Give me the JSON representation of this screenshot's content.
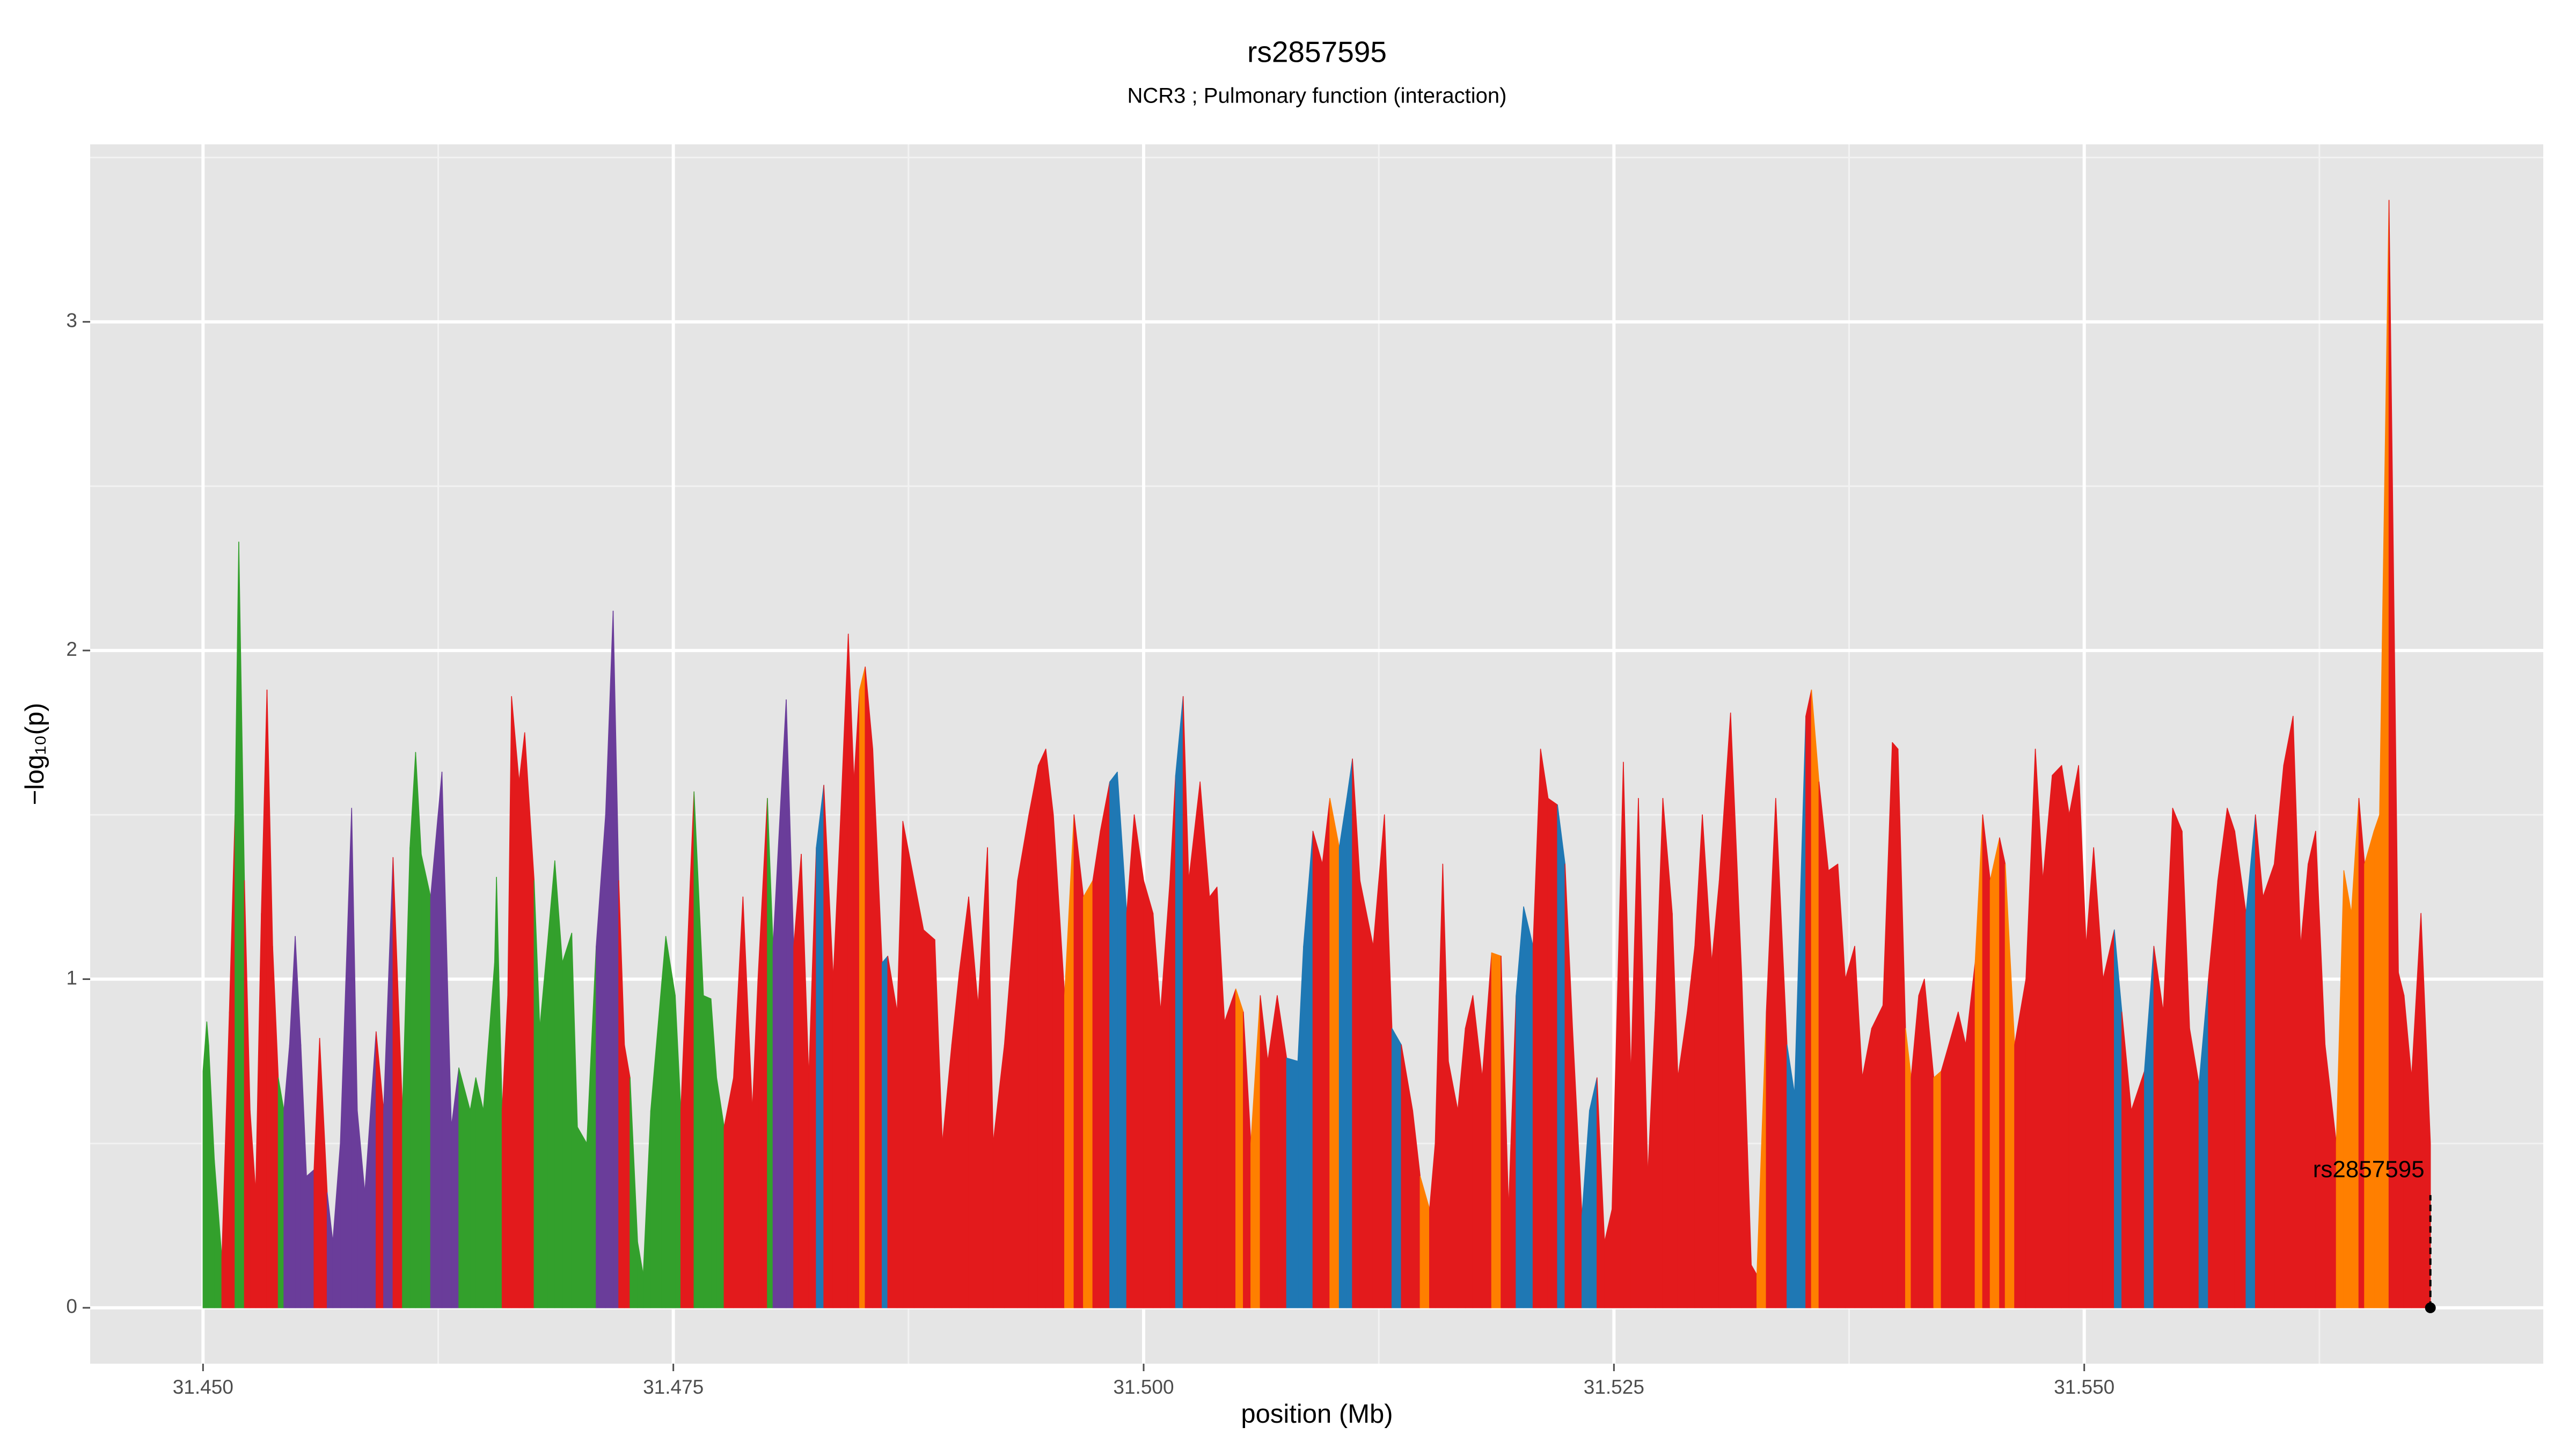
{
  "chart_data": {
    "type": "area",
    "title": "rs2857595",
    "subtitle": "NCR3 ; Pulmonary function (interaction)",
    "x_label": "position (Mb)",
    "y_label": "−log₁₀(p)",
    "xlim": [
      31.444,
      31.5744
    ],
    "ylim": [
      -0.17,
      3.54
    ],
    "xticks": [
      {
        "value": 31.45,
        "label": "31.450"
      },
      {
        "value": 31.475,
        "label": "31.475"
      },
      {
        "value": 31.5,
        "label": "31.500"
      },
      {
        "value": 31.525,
        "label": "31.525"
      },
      {
        "value": 31.55,
        "label": "31.550"
      }
    ],
    "yticks": [
      0,
      1,
      2,
      3
    ],
    "x_minor_ticks": [
      31.4625,
      31.4875,
      31.5125,
      31.5375,
      31.5625
    ],
    "y_minor_ticks": [
      0.5,
      1.5,
      2.5,
      3.5
    ],
    "grid": true,
    "x": [
      31.45,
      31.4502,
      31.4503,
      31.4506,
      31.451,
      31.4514,
      31.4517,
      31.4519,
      31.4522,
      31.4525,
      31.4528,
      31.4531,
      31.4534,
      31.4537,
      31.454,
      31.4543,
      31.4546,
      31.4549,
      31.4552,
      31.4555,
      31.4559,
      31.4562,
      31.4566,
      31.4569,
      31.4573,
      31.4579,
      31.4582,
      31.4586,
      31.4592,
      31.4596,
      31.4601,
      31.4606,
      31.461,
      31.4613,
      31.4616,
      31.4621,
      31.4627,
      31.4632,
      31.4636,
      31.4642,
      31.4645,
      31.4649,
      31.4655,
      31.4656,
      31.4659,
      31.4662,
      31.4664,
      31.4668,
      31.4671,
      31.4676,
      31.4679,
      31.4683,
      31.4687,
      31.4691,
      31.4696,
      31.4699,
      31.4704,
      31.4709,
      31.4714,
      31.4718,
      31.4721,
      31.4724,
      31.4727,
      31.4731,
      31.4734,
      31.4738,
      31.4744,
      31.4746,
      31.4751,
      31.4754,
      31.4759,
      31.4761,
      31.4766,
      31.477,
      31.4773,
      31.4777,
      31.4782,
      31.4787,
      31.4792,
      31.4795,
      31.48,
      31.4803,
      31.481,
      31.4814,
      31.4818,
      31.4822,
      31.4826,
      31.483,
      31.4835,
      31.4839,
      31.4843,
      31.4846,
      31.4849,
      31.4852,
      31.4856,
      31.4861,
      31.4864,
      31.4869,
      31.4872,
      31.4878,
      31.4883,
      31.4889,
      31.4893,
      31.4898,
      31.4902,
      31.4907,
      31.4912,
      31.4917,
      31.492,
      31.4926,
      31.4933,
      31.4939,
      31.4944,
      31.4948,
      31.4952,
      31.4958,
      31.4963,
      31.4968,
      31.4973,
      31.4977,
      31.4982,
      31.4986,
      31.4991,
      31.4995,
      31.5,
      31.5005,
      31.5009,
      31.5014,
      31.5017,
      31.5021,
      31.5024,
      31.503,
      31.5035,
      31.5039,
      31.5043,
      31.5049,
      31.5053,
      31.5057,
      31.5062,
      31.5066,
      31.5071,
      31.5076,
      31.5082,
      31.5085,
      31.509,
      31.5095,
      31.5099,
      31.5104,
      31.5108,
      31.5111,
      31.5115,
      31.5122,
      31.5128,
      31.5132,
      31.5137,
      31.5143,
      31.5147,
      31.5152,
      31.5155,
      31.5159,
      31.5162,
      31.5167,
      31.5171,
      31.5175,
      31.518,
      31.5185,
      31.519,
      31.5194,
      31.5198,
      31.5202,
      31.5207,
      31.5211,
      31.5215,
      31.522,
      31.5224,
      31.5228,
      31.5233,
      31.5237,
      31.5241,
      31.5245,
      31.5249,
      31.5255,
      31.5259,
      31.5263,
      31.5268,
      31.5272,
      31.5276,
      31.5281,
      31.5284,
      31.5289,
      31.5293,
      31.5297,
      31.5302,
      31.5306,
      31.5312,
      31.5318,
      31.5323,
      31.5326,
      31.5331,
      31.5336,
      31.5342,
      31.5346,
      31.5352,
      31.5355,
      31.5359,
      31.5364,
      31.5369,
      31.5373,
      31.5378,
      31.5382,
      31.5387,
      31.5393,
      31.5398,
      31.5401,
      31.5405,
      31.5408,
      31.5412,
      31.5415,
      31.542,
      31.5424,
      31.5428,
      31.5433,
      31.5437,
      31.5442,
      31.5446,
      31.545,
      31.5455,
      31.5458,
      31.5463,
      31.5469,
      31.5474,
      31.5478,
      31.5483,
      31.5488,
      31.5492,
      31.5497,
      31.5501,
      31.5505,
      31.551,
      31.5516,
      31.552,
      31.5525,
      31.5532,
      31.5537,
      31.5542,
      31.5547,
      31.5552,
      31.5556,
      31.5561,
      31.5566,
      31.5571,
      31.5576,
      31.558,
      31.5586,
      31.5591,
      31.5595,
      31.5601,
      31.5606,
      31.5611,
      31.5615,
      31.5619,
      31.5623,
      31.5628,
      31.5634,
      31.5638,
      31.5642,
      31.5646,
      31.5649,
      31.5654,
      31.5657,
      31.5662,
      31.5667,
      31.567,
      31.5674,
      31.5679,
      31.5684
    ],
    "values": [
      0.72,
      0.87,
      0.8,
      0.45,
      0.15,
      0.9,
      1.5,
      2.33,
      1.3,
      0.6,
      0.35,
      1.2,
      1.88,
      1.1,
      0.7,
      0.6,
      0.8,
      1.13,
      0.8,
      0.4,
      0.42,
      0.82,
      0.35,
      0.2,
      0.5,
      1.52,
      0.6,
      0.35,
      0.84,
      0.6,
      1.37,
      0.6,
      1.4,
      1.69,
      1.38,
      1.25,
      1.63,
      0.55,
      0.73,
      0.6,
      0.7,
      0.6,
      1.05,
      1.31,
      0.6,
      0.95,
      1.86,
      1.6,
      1.75,
      1.3,
      0.85,
      1.1,
      1.36,
      1.05,
      1.14,
      0.55,
      0.5,
      1.1,
      1.5,
      2.12,
      1.3,
      0.8,
      0.7,
      0.2,
      0.1,
      0.6,
      1.0,
      1.13,
      0.95,
      0.6,
      1.3,
      1.57,
      0.95,
      0.94,
      0.7,
      0.55,
      0.7,
      1.25,
      0.6,
      1.0,
      1.55,
      1.1,
      1.85,
      1.1,
      1.38,
      0.7,
      1.4,
      1.59,
      1.0,
      1.5,
      2.05,
      1.6,
      1.88,
      1.95,
      1.7,
      1.05,
      1.07,
      0.9,
      1.48,
      1.3,
      1.15,
      1.12,
      0.5,
      0.8,
      1.02,
      1.25,
      0.92,
      1.4,
      0.5,
      0.8,
      1.3,
      1.5,
      1.65,
      1.7,
      1.5,
      0.95,
      1.5,
      1.25,
      1.3,
      1.45,
      1.6,
      1.63,
      1.2,
      1.5,
      1.3,
      1.2,
      0.9,
      1.3,
      1.62,
      1.86,
      1.3,
      1.6,
      1.25,
      1.28,
      0.87,
      0.97,
      0.9,
      0.5,
      0.95,
      0.75,
      0.95,
      0.76,
      0.75,
      1.1,
      1.45,
      1.35,
      1.55,
      1.4,
      1.55,
      1.67,
      1.3,
      1.1,
      1.5,
      0.85,
      0.8,
      0.6,
      0.4,
      0.3,
      0.5,
      1.35,
      0.75,
      0.6,
      0.85,
      0.95,
      0.7,
      1.08,
      1.07,
      0.3,
      0.95,
      1.22,
      1.1,
      1.7,
      1.55,
      1.53,
      1.35,
      0.85,
      0.28,
      0.6,
      0.7,
      0.2,
      0.3,
      1.66,
      0.7,
      1.55,
      0.4,
      0.9,
      1.55,
      1.2,
      0.7,
      0.9,
      1.1,
      1.5,
      1.05,
      1.3,
      1.81,
      1.0,
      0.13,
      0.1,
      0.9,
      1.55,
      0.8,
      0.65,
      1.8,
      1.88,
      1.6,
      1.33,
      1.35,
      1.0,
      1.1,
      0.7,
      0.85,
      0.92,
      1.72,
      1.7,
      0.85,
      0.7,
      0.95,
      1.0,
      0.7,
      0.72,
      0.8,
      0.9,
      0.8,
      1.05,
      1.5,
      1.3,
      1.43,
      1.35,
      0.8,
      1.0,
      1.7,
      1.3,
      1.62,
      1.65,
      1.5,
      1.65,
      1.1,
      1.4,
      1.0,
      1.15,
      0.9,
      0.6,
      0.72,
      1.1,
      0.9,
      1.52,
      1.45,
      0.85,
      0.68,
      1.0,
      1.3,
      1.52,
      1.45,
      1.2,
      1.5,
      1.25,
      1.35,
      1.65,
      1.8,
      1.1,
      1.35,
      1.45,
      0.8,
      0.5,
      1.33,
      1.2,
      1.55,
      1.35,
      1.45,
      1.5,
      3.37,
      1.02,
      0.95,
      0.7,
      1.2,
      0.5
    ],
    "colors": [
      "#33a02c",
      "#33a02c",
      "#33a02c",
      "#33a02c",
      "#e31a1c",
      "#e31a1c",
      "#33a02c",
      "#33a02c",
      "#e31a1c",
      "#e31a1c",
      "#e31a1c",
      "#e31a1c",
      "#e31a1c",
      "#e31a1c",
      "#33a02c",
      "#6a3d9a",
      "#6a3d9a",
      "#6a3d9a",
      "#6a3d9a",
      "#6a3d9a",
      "#e31a1c",
      "#e31a1c",
      "#6a3d9a",
      "#6a3d9a",
      "#6a3d9a",
      "#6a3d9a",
      "#6a3d9a",
      "#6a3d9a",
      "#e31a1c",
      "#6a3d9a",
      "#e31a1c",
      "#33a02c",
      "#33a02c",
      "#33a02c",
      "#33a02c",
      "#6a3d9a",
      "#6a3d9a",
      "#6a3d9a",
      "#33a02c",
      "#33a02c",
      "#33a02c",
      "#33a02c",
      "#33a02c",
      "#33a02c",
      "#e31a1c",
      "#e31a1c",
      "#e31a1c",
      "#e31a1c",
      "#e31a1c",
      "#33a02c",
      "#33a02c",
      "#33a02c",
      "#33a02c",
      "#33a02c",
      "#33a02c",
      "#33a02c",
      "#33a02c",
      "#6a3d9a",
      "#6a3d9a",
      "#6a3d9a",
      "#e31a1c",
      "#e31a1c",
      "#33a02c",
      "#33a02c",
      "#33a02c",
      "#33a02c",
      "#33a02c",
      "#33a02c",
      "#33a02c",
      "#e31a1c",
      "#e31a1c",
      "#33a02c",
      "#33a02c",
      "#33a02c",
      "#33a02c",
      "#e31a1c",
      "#e31a1c",
      "#e31a1c",
      "#e31a1c",
      "#e31a1c",
      "#33a02c",
      "#6a3d9a",
      "#6a3d9a",
      "#e31a1c",
      "#e31a1c",
      "#e31a1c",
      "#1f78b4",
      "#e31a1c",
      "#e31a1c",
      "#e31a1c",
      "#e31a1c",
      "#e31a1c",
      "#ff7f00",
      "#e31a1c",
      "#e31a1c",
      "#1f78b4",
      "#e31a1c",
      "#e31a1c",
      "#e31a1c",
      "#e31a1c",
      "#e31a1c",
      "#e31a1c",
      "#e31a1c",
      "#e31a1c",
      "#e31a1c",
      "#e31a1c",
      "#e31a1c",
      "#e31a1c",
      "#e31a1c",
      "#e31a1c",
      "#e31a1c",
      "#e31a1c",
      "#e31a1c",
      "#e31a1c",
      "#e31a1c",
      "#ff7f00",
      "#e31a1c",
      "#ff7f00",
      "#e31a1c",
      "#e31a1c",
      "#1f78b4",
      "#1f78b4",
      "#e31a1c",
      "#e31a1c",
      "#e31a1c",
      "#e31a1c",
      "#e31a1c",
      "#e31a1c",
      "#1f78b4",
      "#e31a1c",
      "#e31a1c",
      "#e31a1c",
      "#e31a1c",
      "#e31a1c",
      "#e31a1c",
      "#ff7f00",
      "#e31a1c",
      "#ff7f00",
      "#e31a1c",
      "#e31a1c",
      "#e31a1c",
      "#1f78b4",
      "#1f78b4",
      "#1f78b4",
      "#e31a1c",
      "#e31a1c",
      "#ff7f00",
      "#1f78b4",
      "#1f78b4",
      "#e31a1c",
      "#e31a1c",
      "#e31a1c",
      "#e31a1c",
      "#1f78b4",
      "#e31a1c",
      "#e31a1c",
      "#ff7f00",
      "#e31a1c",
      "#e31a1c",
      "#e31a1c",
      "#e31a1c",
      "#e31a1c",
      "#e31a1c",
      "#e31a1c",
      "#e31a1c",
      "#ff7f00",
      "#e31a1c",
      "#e31a1c",
      "#1f78b4",
      "#1f78b4",
      "#e31a1c",
      "#e31a1c",
      "#e31a1c",
      "#1f78b4",
      "#e31a1c",
      "#e31a1c",
      "#1f78b4",
      "#1f78b4",
      "#e31a1c",
      "#e31a1c",
      "#e31a1c",
      "#e31a1c",
      "#e31a1c",
      "#e31a1c",
      "#e31a1c",
      "#e31a1c",
      "#e31a1c",
      "#e31a1c",
      "#e31a1c",
      "#e31a1c",
      "#e31a1c",
      "#e31a1c",
      "#e31a1c",
      "#e31a1c",
      "#e31a1c",
      "#e31a1c",
      "#e31a1c",
      "#ff7f00",
      "#e31a1c",
      "#e31a1c",
      "#1f78b4",
      "#1f78b4",
      "#e31a1c",
      "#ff7f00",
      "#e31a1c",
      "#e31a1c",
      "#e31a1c",
      "#e31a1c",
      "#e31a1c",
      "#e31a1c",
      "#e31a1c",
      "#e31a1c",
      "#e31a1c",
      "#e31a1c",
      "#ff7f00",
      "#e31a1c",
      "#e31a1c",
      "#e31a1c",
      "#ff7f00",
      "#e31a1c",
      "#e31a1c",
      "#e31a1c",
      "#e31a1c",
      "#ff7f00",
      "#e31a1c",
      "#ff7f00",
      "#e31a1c",
      "#ff7f00",
      "#e31a1c",
      "#e31a1c",
      "#e31a1c",
      "#e31a1c",
      "#e31a1c",
      "#e31a1c",
      "#e31a1c",
      "#e31a1c",
      "#e31a1c",
      "#e31a1c",
      "#e31a1c",
      "#1f78b4",
      "#e31a1c",
      "#e31a1c",
      "#1f78b4",
      "#e31a1c",
      "#e31a1c",
      "#e31a1c",
      "#e31a1c",
      "#e31a1c",
      "#1f78b4",
      "#e31a1c",
      "#e31a1c",
      "#e31a1c",
      "#e31a1c",
      "#1f78b4",
      "#e31a1c",
      "#e31a1c",
      "#e31a1c",
      "#e31a1c",
      "#e31a1c",
      "#e31a1c",
      "#e31a1c",
      "#e31a1c",
      "#e31a1c",
      "#ff7f00",
      "#ff7f00",
      "#ff7f00",
      "#e31a1c",
      "#ff7f00",
      "#ff7f00",
      "#ff7f00",
      "#e31a1c",
      "#e31a1c",
      "#e31a1c",
      "#e31a1c",
      "#e31a1c",
      "#e31a1c",
      "#e31a1c"
    ],
    "annotation": {
      "label": "rs2857595",
      "x": 31.5684,
      "y": 0
    }
  }
}
